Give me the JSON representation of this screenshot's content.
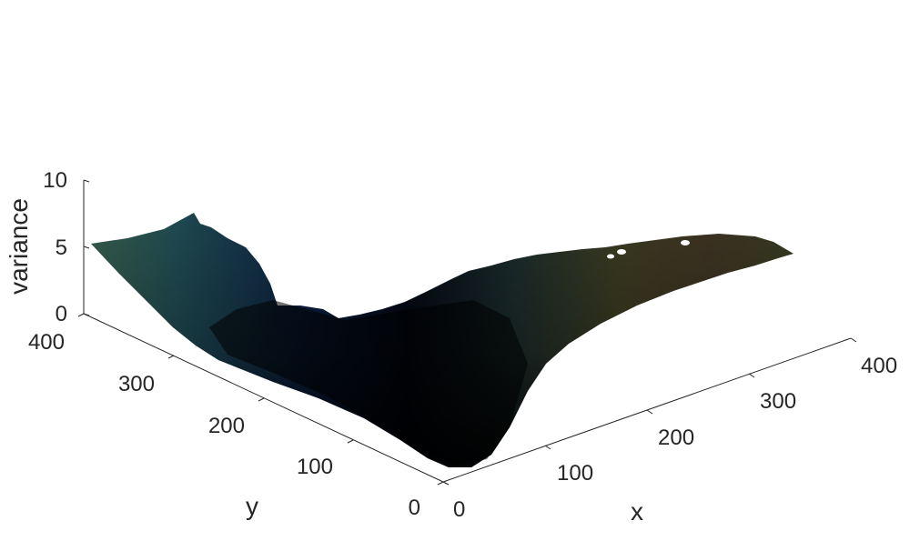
{
  "chart_data": {
    "type": "surface",
    "xlabel": "x",
    "ylabel": "y",
    "zlabel": "variance",
    "xlim": [
      0,
      400
    ],
    "ylim": [
      0,
      400
    ],
    "zlim": [
      0,
      10
    ],
    "x_ticks": [
      "0",
      "100",
      "200",
      "300",
      "400"
    ],
    "y_ticks": [
      "0",
      "100",
      "200",
      "300",
      "400"
    ],
    "z_ticks": [
      "0",
      "5",
      "10"
    ],
    "grid": false,
    "colormap": "parula-dark"
  }
}
